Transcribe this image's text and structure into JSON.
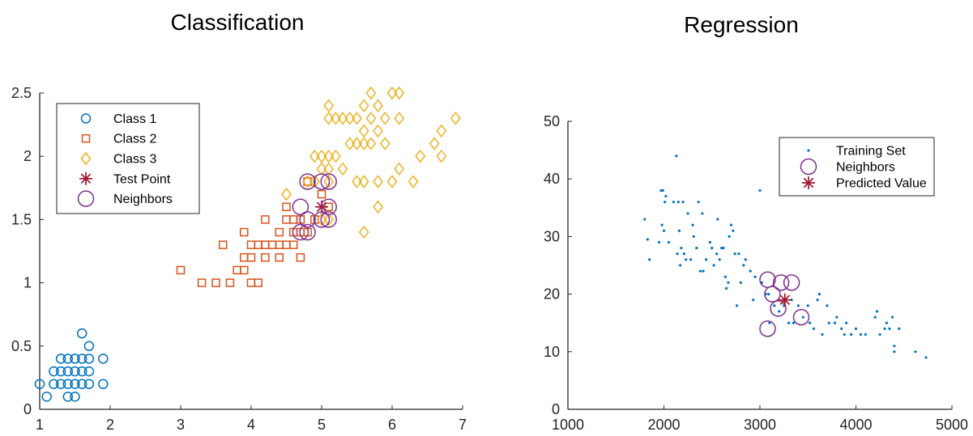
{
  "chart_data": [
    {
      "type": "scatter",
      "title": "Classification",
      "xlim": [
        1,
        7
      ],
      "ylim": [
        0,
        2.5
      ],
      "xticks": [
        "1",
        "2",
        "3",
        "4",
        "5",
        "6",
        "7"
      ],
      "yticks": [
        "0",
        "0.5",
        "1",
        "1.5",
        "2",
        "2.5"
      ],
      "legend_placement": "top-left",
      "series": [
        {
          "name": "Class 1",
          "marker": "circle",
          "color": "#0072BD",
          "points": [
            [
              1.0,
              0.2
            ],
            [
              1.1,
              0.1
            ],
            [
              1.2,
              0.2
            ],
            [
              1.3,
              0.2
            ],
            [
              1.3,
              0.3
            ],
            [
              1.3,
              0.4
            ],
            [
              1.4,
              0.1
            ],
            [
              1.4,
              0.2
            ],
            [
              1.4,
              0.3
            ],
            [
              1.5,
              0.1
            ],
            [
              1.5,
              0.2
            ],
            [
              1.5,
              0.4
            ],
            [
              1.6,
              0.2
            ],
            [
              1.6,
              0.4
            ],
            [
              1.6,
              0.6
            ],
            [
              1.7,
              0.2
            ],
            [
              1.7,
              0.3
            ],
            [
              1.7,
              0.4
            ],
            [
              1.7,
              0.5
            ],
            [
              1.9,
              0.2
            ],
            [
              1.9,
              0.4
            ],
            [
              1.2,
              0.3
            ],
            [
              1.4,
              0.4
            ],
            [
              1.6,
              0.3
            ],
            [
              1.5,
              0.3
            ]
          ]
        },
        {
          "name": "Class 2",
          "marker": "square",
          "color": "#D95319",
          "points": [
            [
              3.0,
              1.1
            ],
            [
              3.3,
              1.0
            ],
            [
              3.5,
              1.0
            ],
            [
              3.6,
              1.3
            ],
            [
              3.7,
              1.0
            ],
            [
              3.8,
              1.1
            ],
            [
              3.9,
              1.1
            ],
            [
              3.9,
              1.2
            ],
            [
              3.9,
              1.4
            ],
            [
              4.0,
              1.0
            ],
            [
              4.0,
              1.2
            ],
            [
              4.0,
              1.3
            ],
            [
              4.1,
              1.0
            ],
            [
              4.1,
              1.3
            ],
            [
              4.2,
              1.2
            ],
            [
              4.2,
              1.3
            ],
            [
              4.3,
              1.3
            ],
            [
              4.4,
              1.2
            ],
            [
              4.4,
              1.3
            ],
            [
              4.4,
              1.4
            ],
            [
              4.5,
              1.3
            ],
            [
              4.5,
              1.5
            ],
            [
              4.6,
              1.3
            ],
            [
              4.6,
              1.4
            ],
            [
              4.7,
              1.2
            ],
            [
              4.7,
              1.4
            ],
            [
              4.7,
              1.5
            ],
            [
              4.8,
              1.4
            ],
            [
              4.9,
              1.5
            ],
            [
              5.0,
              1.7
            ],
            [
              5.1,
              1.6
            ],
            [
              4.5,
              1.6
            ],
            [
              4.2,
              1.5
            ],
            [
              4.6,
              1.5
            ],
            [
              4.8,
              1.8
            ]
          ]
        },
        {
          "name": "Class 3",
          "marker": "diamond",
          "color": "#EDB120",
          "points": [
            [
              4.5,
              1.7
            ],
            [
              4.8,
              1.8
            ],
            [
              4.9,
              1.8
            ],
            [
              4.9,
              2.0
            ],
            [
              5.0,
              1.5
            ],
            [
              5.0,
              2.0
            ],
            [
              5.1,
              1.5
            ],
            [
              5.1,
              1.8
            ],
            [
              5.1,
              1.9
            ],
            [
              5.1,
              2.0
            ],
            [
              5.1,
              2.3
            ],
            [
              5.1,
              2.4
            ],
            [
              5.2,
              2.0
            ],
            [
              5.2,
              2.3
            ],
            [
              5.3,
              1.9
            ],
            [
              5.3,
              2.3
            ],
            [
              5.4,
              2.1
            ],
            [
              5.4,
              2.3
            ],
            [
              5.5,
              1.8
            ],
            [
              5.5,
              2.1
            ],
            [
              5.6,
              1.4
            ],
            [
              5.6,
              1.8
            ],
            [
              5.6,
              2.1
            ],
            [
              5.6,
              2.2
            ],
            [
              5.6,
              2.4
            ],
            [
              5.7,
              2.1
            ],
            [
              5.7,
              2.3
            ],
            [
              5.7,
              2.5
            ],
            [
              5.8,
              1.6
            ],
            [
              5.8,
              1.8
            ],
            [
              5.8,
              2.2
            ],
            [
              5.8,
              2.4
            ],
            [
              5.9,
              2.1
            ],
            [
              5.9,
              2.3
            ],
            [
              6.0,
              1.8
            ],
            [
              6.0,
              2.5
            ],
            [
              6.1,
              1.9
            ],
            [
              6.1,
              2.3
            ],
            [
              6.1,
              2.5
            ],
            [
              6.3,
              1.8
            ],
            [
              6.4,
              2.0
            ],
            [
              6.6,
              2.1
            ],
            [
              6.7,
              2.0
            ],
            [
              6.7,
              2.2
            ],
            [
              6.9,
              2.3
            ],
            [
              5.0,
              1.9
            ],
            [
              5.5,
              2.3
            ]
          ]
        },
        {
          "name": "Test Point",
          "marker": "asterisk",
          "color": "#A2142F",
          "points": [
            [
              5.0,
              1.6
            ]
          ]
        },
        {
          "name": "Neighbors",
          "marker": "ring",
          "color": "#7E2F8E",
          "points": [
            [
              4.8,
              1.8
            ],
            [
              5.0,
              1.8
            ],
            [
              5.1,
              1.8
            ],
            [
              4.7,
              1.6
            ],
            [
              5.1,
              1.6
            ],
            [
              4.8,
              1.5
            ],
            [
              5.0,
              1.5
            ],
            [
              5.1,
              1.5
            ],
            [
              4.7,
              1.4
            ],
            [
              4.8,
              1.4
            ]
          ]
        }
      ]
    },
    {
      "type": "scatter",
      "title": "Regression",
      "xlim": [
        1000,
        5000
      ],
      "ylim": [
        0,
        50
      ],
      "xticks": [
        "1000",
        "2000",
        "3000",
        "4000",
        "5000"
      ],
      "yticks": [
        "0",
        "10",
        "20",
        "30",
        "40",
        "50"
      ],
      "legend_placement": "top-right",
      "series": [
        {
          "name": "Training Set",
          "marker": "dot",
          "color": "#0072BD",
          "points": [
            [
              1800,
              33
            ],
            [
              1830,
              29.5
            ],
            [
              1850,
              26
            ],
            [
              1950,
              29
            ],
            [
              1970,
              38
            ],
            [
              1980,
              32
            ],
            [
              1990,
              38
            ],
            [
              2000,
              31
            ],
            [
              2010,
              36
            ],
            [
              2020,
              37
            ],
            [
              2050,
              29
            ],
            [
              2100,
              36
            ],
            [
              2130,
              44
            ],
            [
              2140,
              27
            ],
            [
              2150,
              36
            ],
            [
              2160,
              31
            ],
            [
              2170,
              25
            ],
            [
              2180,
              28
            ],
            [
              2200,
              36
            ],
            [
              2210,
              27
            ],
            [
              2230,
              26
            ],
            [
              2250,
              34
            ],
            [
              2280,
              26
            ],
            [
              2300,
              32
            ],
            [
              2310,
              30
            ],
            [
              2340,
              28
            ],
            [
              2360,
              36
            ],
            [
              2380,
              24
            ],
            [
              2400,
              34
            ],
            [
              2410,
              24
            ],
            [
              2440,
              26
            ],
            [
              2480,
              29
            ],
            [
              2500,
              28
            ],
            [
              2520,
              25
            ],
            [
              2550,
              27
            ],
            [
              2560,
              33
            ],
            [
              2580,
              26
            ],
            [
              2600,
              28
            ],
            [
              2620,
              28
            ],
            [
              2640,
              23
            ],
            [
              2650,
              21
            ],
            [
              2670,
              22
            ],
            [
              2680,
              30
            ],
            [
              2700,
              32
            ],
            [
              2720,
              31
            ],
            [
              2740,
              27
            ],
            [
              2760,
              18
            ],
            [
              2780,
              27
            ],
            [
              2800,
              22
            ],
            [
              2830,
              25
            ],
            [
              2850,
              26
            ],
            [
              2900,
              24
            ],
            [
              2930,
              19
            ],
            [
              2950,
              23
            ],
            [
              3000,
              38
            ],
            [
              3020,
              22
            ],
            [
              3060,
              20
            ],
            [
              3090,
              20
            ],
            [
              3100,
              15
            ],
            [
              3150,
              18
            ],
            [
              3200,
              17
            ],
            [
              3250,
              18
            ],
            [
              3300,
              15
            ],
            [
              3330,
              19
            ],
            [
              3350,
              15
            ],
            [
              3400,
              18
            ],
            [
              3450,
              16
            ],
            [
              3500,
              18
            ],
            [
              3520,
              15
            ],
            [
              3560,
              14
            ],
            [
              3600,
              19
            ],
            [
              3620,
              20
            ],
            [
              3650,
              13
            ],
            [
              3700,
              18
            ],
            [
              3720,
              15
            ],
            [
              3780,
              15
            ],
            [
              3800,
              16
            ],
            [
              3850,
              14
            ],
            [
              3880,
              13
            ],
            [
              3900,
              15
            ],
            [
              3950,
              13
            ],
            [
              4000,
              14
            ],
            [
              4050,
              13
            ],
            [
              4100,
              13
            ],
            [
              4200,
              16
            ],
            [
              4220,
              17
            ],
            [
              4250,
              13
            ],
            [
              4300,
              14
            ],
            [
              4320,
              15
            ],
            [
              4350,
              14
            ],
            [
              4380,
              16
            ],
            [
              4400,
              10
            ],
            [
              4400,
              11
            ],
            [
              4450,
              14
            ],
            [
              4620,
              10
            ],
            [
              4730,
              9
            ]
          ]
        },
        {
          "name": "Neighbors",
          "marker": "ring",
          "color": "#7E2F8E",
          "points": [
            [
              3080,
              22.5
            ],
            [
              3080,
              14
            ],
            [
              3130,
              20
            ],
            [
              3190,
              17.5
            ],
            [
              3220,
              22
            ],
            [
              3330,
              22
            ],
            [
              3430,
              16
            ]
          ]
        },
        {
          "name": "Predicted Value",
          "marker": "asterisk",
          "color": "#A2142F",
          "points": [
            [
              3260,
              19
            ]
          ]
        }
      ]
    }
  ]
}
